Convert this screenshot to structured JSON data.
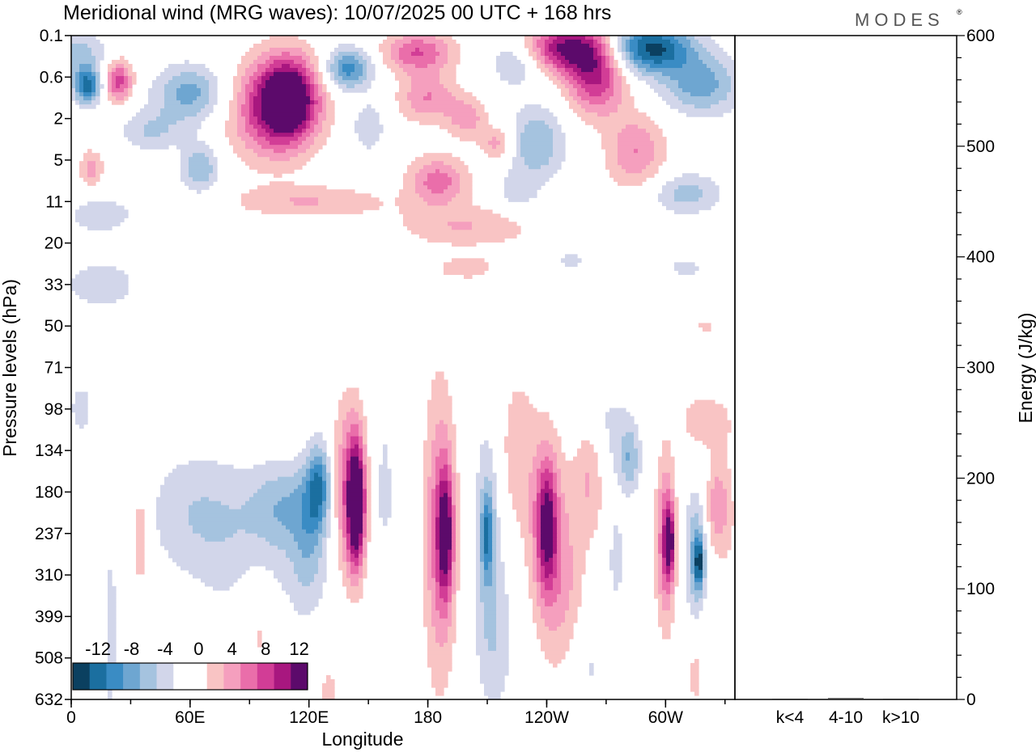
{
  "chart_data": {
    "type": "heatmap",
    "title": "Meridional wind (MRG waves):  10/07/2025  00 UTC  + 168 hrs",
    "logo_text": "MODES",
    "xlabel": "Longitude",
    "ylabel": "Pressure levels (hPa)",
    "y2label": "Energy (J/kg)",
    "x_ticks": [
      {
        "lon": 0,
        "label": "0"
      },
      {
        "lon": 60,
        "label": "60E"
      },
      {
        "lon": 120,
        "label": "120E"
      },
      {
        "lon": 180,
        "label": "180"
      },
      {
        "lon": 240,
        "label": "120W"
      },
      {
        "lon": 300,
        "label": "60W"
      }
    ],
    "xlim": [
      0,
      335
    ],
    "y_levels": [
      "0.1",
      "0.6",
      "2",
      "5",
      "11",
      "20",
      "33",
      "50",
      "71",
      "98",
      "134",
      "180",
      "237",
      "310",
      "399",
      "508",
      "632"
    ],
    "energy_axis": {
      "ylim": [
        0,
        600
      ],
      "ticks": [
        "0",
        "100",
        "200",
        "300",
        "400",
        "500",
        "600"
      ]
    },
    "energy_categories": [
      "k<4",
      "4-10",
      "k>10"
    ],
    "energy_values": [
      0.4,
      1.2,
      0.2
    ],
    "colorbar": {
      "labels": [
        "-12",
        "-8",
        "-4",
        "0",
        "4",
        "8",
        "12"
      ],
      "colors": [
        "#0b4060",
        "#1b6fa0",
        "#3a8cc4",
        "#6ea6d1",
        "#a5c3df",
        "#d2d6ea",
        "#ffffff",
        "#ffffff",
        "#f9c4c4",
        "#f59fbe",
        "#ea6eaa",
        "#d23d96",
        "#a8177f",
        "#5c0a6b"
      ]
    },
    "field_blobs": [
      {
        "lon": 8,
        "lev": 1.2,
        "v": -11,
        "rx": 7,
        "ry": 0.45
      },
      {
        "lon": 3,
        "lev": 0.4,
        "v": -5,
        "rx": 14,
        "ry": 0.5
      },
      {
        "lon": 24,
        "lev": 1.1,
        "v": 9,
        "rx": 7,
        "ry": 0.5
      },
      {
        "lon": 60,
        "lev": 1.4,
        "v": -7,
        "rx": 18,
        "ry": 0.7
      },
      {
        "lon": 65,
        "lev": 3.2,
        "v": -6,
        "rx": 10,
        "ry": 0.6
      },
      {
        "lon": 40,
        "lev": 2.3,
        "v": -4,
        "rx": 16,
        "ry": 0.5
      },
      {
        "lon": 10,
        "lev": 3.2,
        "v": 5,
        "rx": 6,
        "ry": 0.45
      },
      {
        "lon": 110,
        "lev": 1.5,
        "v": 13,
        "rx": 15,
        "ry": 1.0
      },
      {
        "lon": 100,
        "lev": 1.8,
        "v": 8,
        "rx": 22,
        "ry": 1.2
      },
      {
        "lon": 140,
        "lev": 0.8,
        "v": -9,
        "rx": 12,
        "ry": 0.5
      },
      {
        "lon": 150,
        "lev": 2.2,
        "v": -4,
        "rx": 8,
        "ry": 0.6
      },
      {
        "lon": 120,
        "lev": 4.0,
        "v": 4,
        "rx": 40,
        "ry": 0.4
      },
      {
        "lon": 175,
        "lev": 0.4,
        "v": 8,
        "rx": 18,
        "ry": 0.5
      },
      {
        "lon": 180,
        "lev": 1.5,
        "v": 6,
        "rx": 15,
        "ry": 0.6
      },
      {
        "lon": 200,
        "lev": 2.0,
        "v": 5,
        "rx": 10,
        "ry": 0.5
      },
      {
        "lon": 185,
        "lev": 3.5,
        "v": 7,
        "rx": 15,
        "ry": 0.6
      },
      {
        "lon": 215,
        "lev": 2.6,
        "v": 5,
        "rx": 8,
        "ry": 0.4
      },
      {
        "lon": 200,
        "lev": 4.6,
        "v": 4,
        "rx": 35,
        "ry": 0.5
      },
      {
        "lon": 250,
        "lev": 0.3,
        "v": 12,
        "rx": 22,
        "ry": 0.6
      },
      {
        "lon": 265,
        "lev": 1.0,
        "v": 10,
        "rx": 15,
        "ry": 0.9
      },
      {
        "lon": 285,
        "lev": 2.8,
        "v": 6,
        "rx": 15,
        "ry": 0.9
      },
      {
        "lon": 292,
        "lev": 0.3,
        "v": -13,
        "rx": 22,
        "ry": 0.6
      },
      {
        "lon": 318,
        "lev": 1.2,
        "v": -7,
        "rx": 20,
        "ry": 0.7
      },
      {
        "lon": 225,
        "lev": 0.6,
        "v": -5,
        "rx": 14,
        "ry": 0.6
      },
      {
        "lon": 235,
        "lev": 2.6,
        "v": -6,
        "rx": 14,
        "ry": 0.9
      },
      {
        "lon": 225,
        "lev": 3.8,
        "v": -3,
        "rx": 10,
        "ry": 0.5
      },
      {
        "lon": 310,
        "lev": 3.8,
        "v": -5,
        "rx": 18,
        "ry": 0.5
      },
      {
        "lon": 15,
        "lev": 4.3,
        "v": -3,
        "rx": 20,
        "ry": 0.5
      },
      {
        "lon": 15,
        "lev": 6.0,
        "v": -2.6,
        "rx": 28,
        "ry": 0.9
      },
      {
        "lon": 200,
        "lev": 5.6,
        "v": 3.2,
        "rx": 16,
        "ry": 0.3
      },
      {
        "lon": 252,
        "lev": 5.4,
        "v": -2.6,
        "rx": 10,
        "ry": 0.25
      },
      {
        "lon": 310,
        "lev": 5.6,
        "v": -2.6,
        "rx": 12,
        "ry": 0.3
      },
      {
        "lon": 320,
        "lev": 7.0,
        "v": 2.8,
        "rx": 6,
        "ry": 0.15
      },
      {
        "lon": 5,
        "lev": 9.0,
        "v": -2.6,
        "rx": 8,
        "ry": 0.9
      },
      {
        "lon": 65,
        "lev": 11.5,
        "v": -4,
        "rx": 28,
        "ry": 1.5
      },
      {
        "lon": 108,
        "lev": 11.3,
        "v": -5,
        "rx": 18,
        "ry": 1.0
      },
      {
        "lon": 125,
        "lev": 10.8,
        "v": -8,
        "rx": 6,
        "ry": 1.0
      },
      {
        "lon": 120,
        "lev": 12.0,
        "v": -4,
        "rx": 8,
        "ry": 1.5
      },
      {
        "lon": 144,
        "lev": 11.3,
        "v": 14,
        "rx": 4.5,
        "ry": 1.5
      },
      {
        "lon": 140,
        "lev": 11.0,
        "v": 7,
        "rx": 8,
        "ry": 2.2
      },
      {
        "lon": 158,
        "lev": 12.0,
        "v": -3,
        "rx": 6,
        "ry": 3.5
      },
      {
        "lon": 186,
        "lev": 12.0,
        "v": 7,
        "rx": 8,
        "ry": 3.5
      },
      {
        "lon": 189,
        "lev": 12.0,
        "v": 10,
        "rx": 4,
        "ry": 1.5
      },
      {
        "lon": 210,
        "lev": 12.0,
        "v": -4,
        "rx": 7,
        "ry": 3.0
      },
      {
        "lon": 210,
        "lev": 12.0,
        "v": -7,
        "rx": 3,
        "ry": 1.0
      },
      {
        "lon": 225,
        "lev": 10.0,
        "v": 3.2,
        "rx": 10,
        "ry": 2.0
      },
      {
        "lon": 240,
        "lev": 11.8,
        "v": 9,
        "rx": 5,
        "ry": 1.5
      },
      {
        "lon": 240,
        "lev": 12.0,
        "v": 5,
        "rx": 10,
        "ry": 2.5
      },
      {
        "lon": 250,
        "lev": 13.5,
        "v": 3.5,
        "rx": 10,
        "ry": 2.5
      },
      {
        "lon": 262,
        "lev": 10.5,
        "v": 5,
        "rx": 8,
        "ry": 1.5
      },
      {
        "lon": 270,
        "lev": 9.5,
        "v": -3,
        "rx": 14,
        "ry": 1.5
      },
      {
        "lon": 282,
        "lev": 10.2,
        "v": -5,
        "rx": 5,
        "ry": 0.8
      },
      {
        "lon": 275,
        "lev": 12.6,
        "v": -3,
        "rx": 4,
        "ry": 1.2
      },
      {
        "lon": 300,
        "lev": 12.2,
        "v": 8,
        "rx": 5,
        "ry": 2.0
      },
      {
        "lon": 302,
        "lev": 12.2,
        "v": 10,
        "rx": 2.5,
        "ry": 0.8
      },
      {
        "lon": 315,
        "lev": 12.5,
        "v": -6,
        "rx": 5,
        "ry": 1.5
      },
      {
        "lon": 317,
        "lev": 12.7,
        "v": -9,
        "rx": 2.5,
        "ry": 0.6
      },
      {
        "lon": 325,
        "lev": 11.3,
        "v": 4,
        "rx": 5,
        "ry": 1.0
      },
      {
        "lon": 330,
        "lev": 11.5,
        "v": 3,
        "rx": 6,
        "ry": 1.5
      },
      {
        "lon": 320,
        "lev": 9.3,
        "v": 3.5,
        "rx": 14,
        "ry": 0.7
      },
      {
        "lon": 272,
        "lev": 8.5,
        "v": 3.2,
        "rx": 7,
        "ry": 0.3
      },
      {
        "lon": 35,
        "lev": 12.0,
        "v": 4,
        "rx": 5,
        "ry": 1.5
      },
      {
        "lon": 95,
        "lev": 14.0,
        "v": 3.5,
        "rx": 12,
        "ry": 1.5
      },
      {
        "lon": 158,
        "lev": 14.0,
        "v": 3.2,
        "rx": 4,
        "ry": 2.0
      },
      {
        "lon": 100,
        "lev": 13.0,
        "v": -3,
        "rx": 30,
        "ry": 1.5
      },
      {
        "lon": 20,
        "lev": 14.5,
        "v": -2.6,
        "rx": 4,
        "ry": 3.0
      },
      {
        "lon": 130,
        "lev": 16.0,
        "v": 3.5,
        "rx": 4,
        "ry": 0.8
      },
      {
        "lon": 215,
        "lev": 14.5,
        "v": -2.8,
        "rx": 10,
        "ry": 2.0
      },
      {
        "lon": 260,
        "lev": 15.2,
        "v": -2.6,
        "rx": 12,
        "ry": 1.2
      },
      {
        "lon": 315,
        "lev": 15.4,
        "v": 3.2,
        "rx": 3,
        "ry": 0.8
      }
    ]
  }
}
